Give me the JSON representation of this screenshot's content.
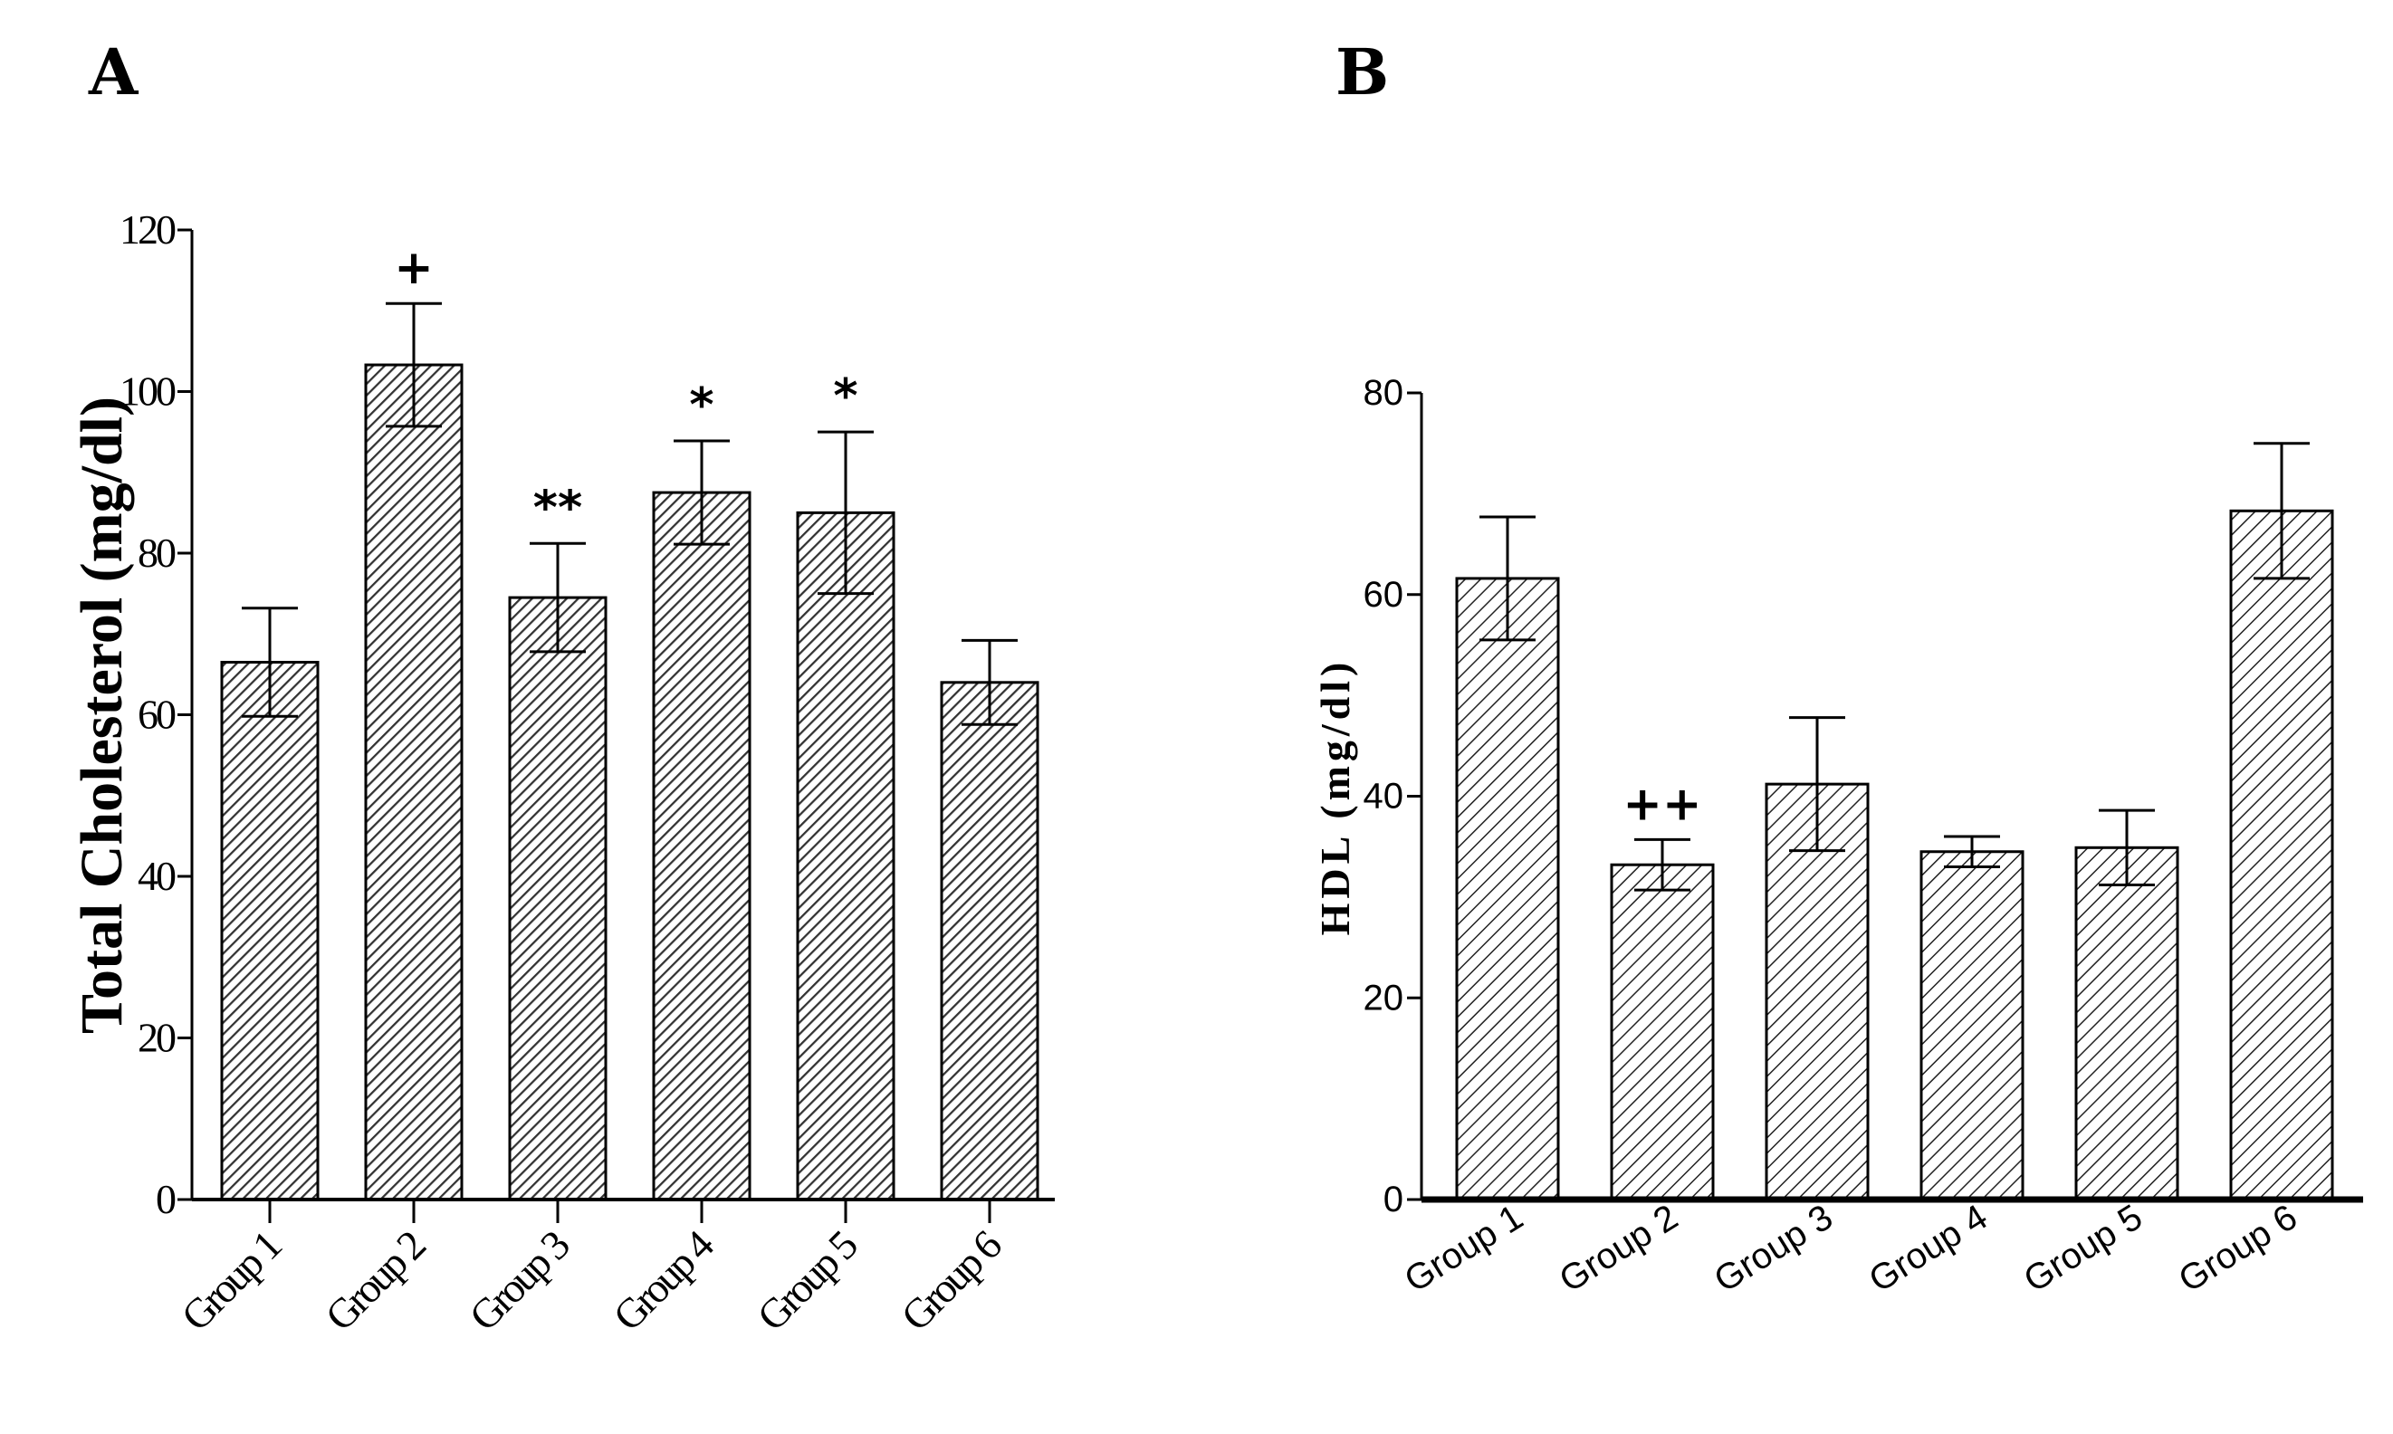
{
  "figure": {
    "panel_a": "A",
    "panel_b": "B"
  },
  "chart_data": [
    {
      "type": "bar",
      "panel": "A",
      "title": "",
      "xlabel": "",
      "ylabel": "Total Cholesterol (mg/dl)",
      "ylim": [
        0,
        120
      ],
      "yticks": [
        0,
        20,
        40,
        60,
        80,
        100,
        120
      ],
      "ytick_labels": [
        "0",
        "20",
        "40",
        "60",
        "80",
        "100",
        "120"
      ],
      "categories": [
        "Group 1",
        "Group 2",
        "Group 3",
        "Group 4",
        "Group 5",
        "Group 6"
      ],
      "values": [
        66.5,
        103.3,
        74.5,
        87.5,
        85,
        64
      ],
      "errors": [
        6.7,
        7.6,
        6.7,
        6.4,
        10,
        5.2
      ],
      "annotations": [
        "",
        "+",
        "**",
        "*",
        "*",
        ""
      ],
      "grid": false,
      "pattern": "hatched"
    },
    {
      "type": "bar",
      "panel": "B",
      "title": "",
      "xlabel": "",
      "ylabel": "HDL (mg/dl)",
      "ylim": [
        0,
        80
      ],
      "yticks": [
        0,
        20,
        40,
        60,
        80
      ],
      "ytick_labels": [
        "0",
        "20",
        "40",
        "60",
        "80"
      ],
      "categories": [
        "Group 1",
        "Group 2",
        "Group 3",
        "Group 4",
        "Group 5",
        "Group 6"
      ],
      "values": [
        61.6,
        33.2,
        41.2,
        34.5,
        34.9,
        68.3
      ],
      "errors": [
        6.1,
        2.5,
        6.6,
        1.5,
        3.7,
        6.7
      ],
      "annotations": [
        "",
        "++",
        "",
        "",
        "",
        ""
      ],
      "grid": false,
      "pattern": "hatched"
    }
  ]
}
